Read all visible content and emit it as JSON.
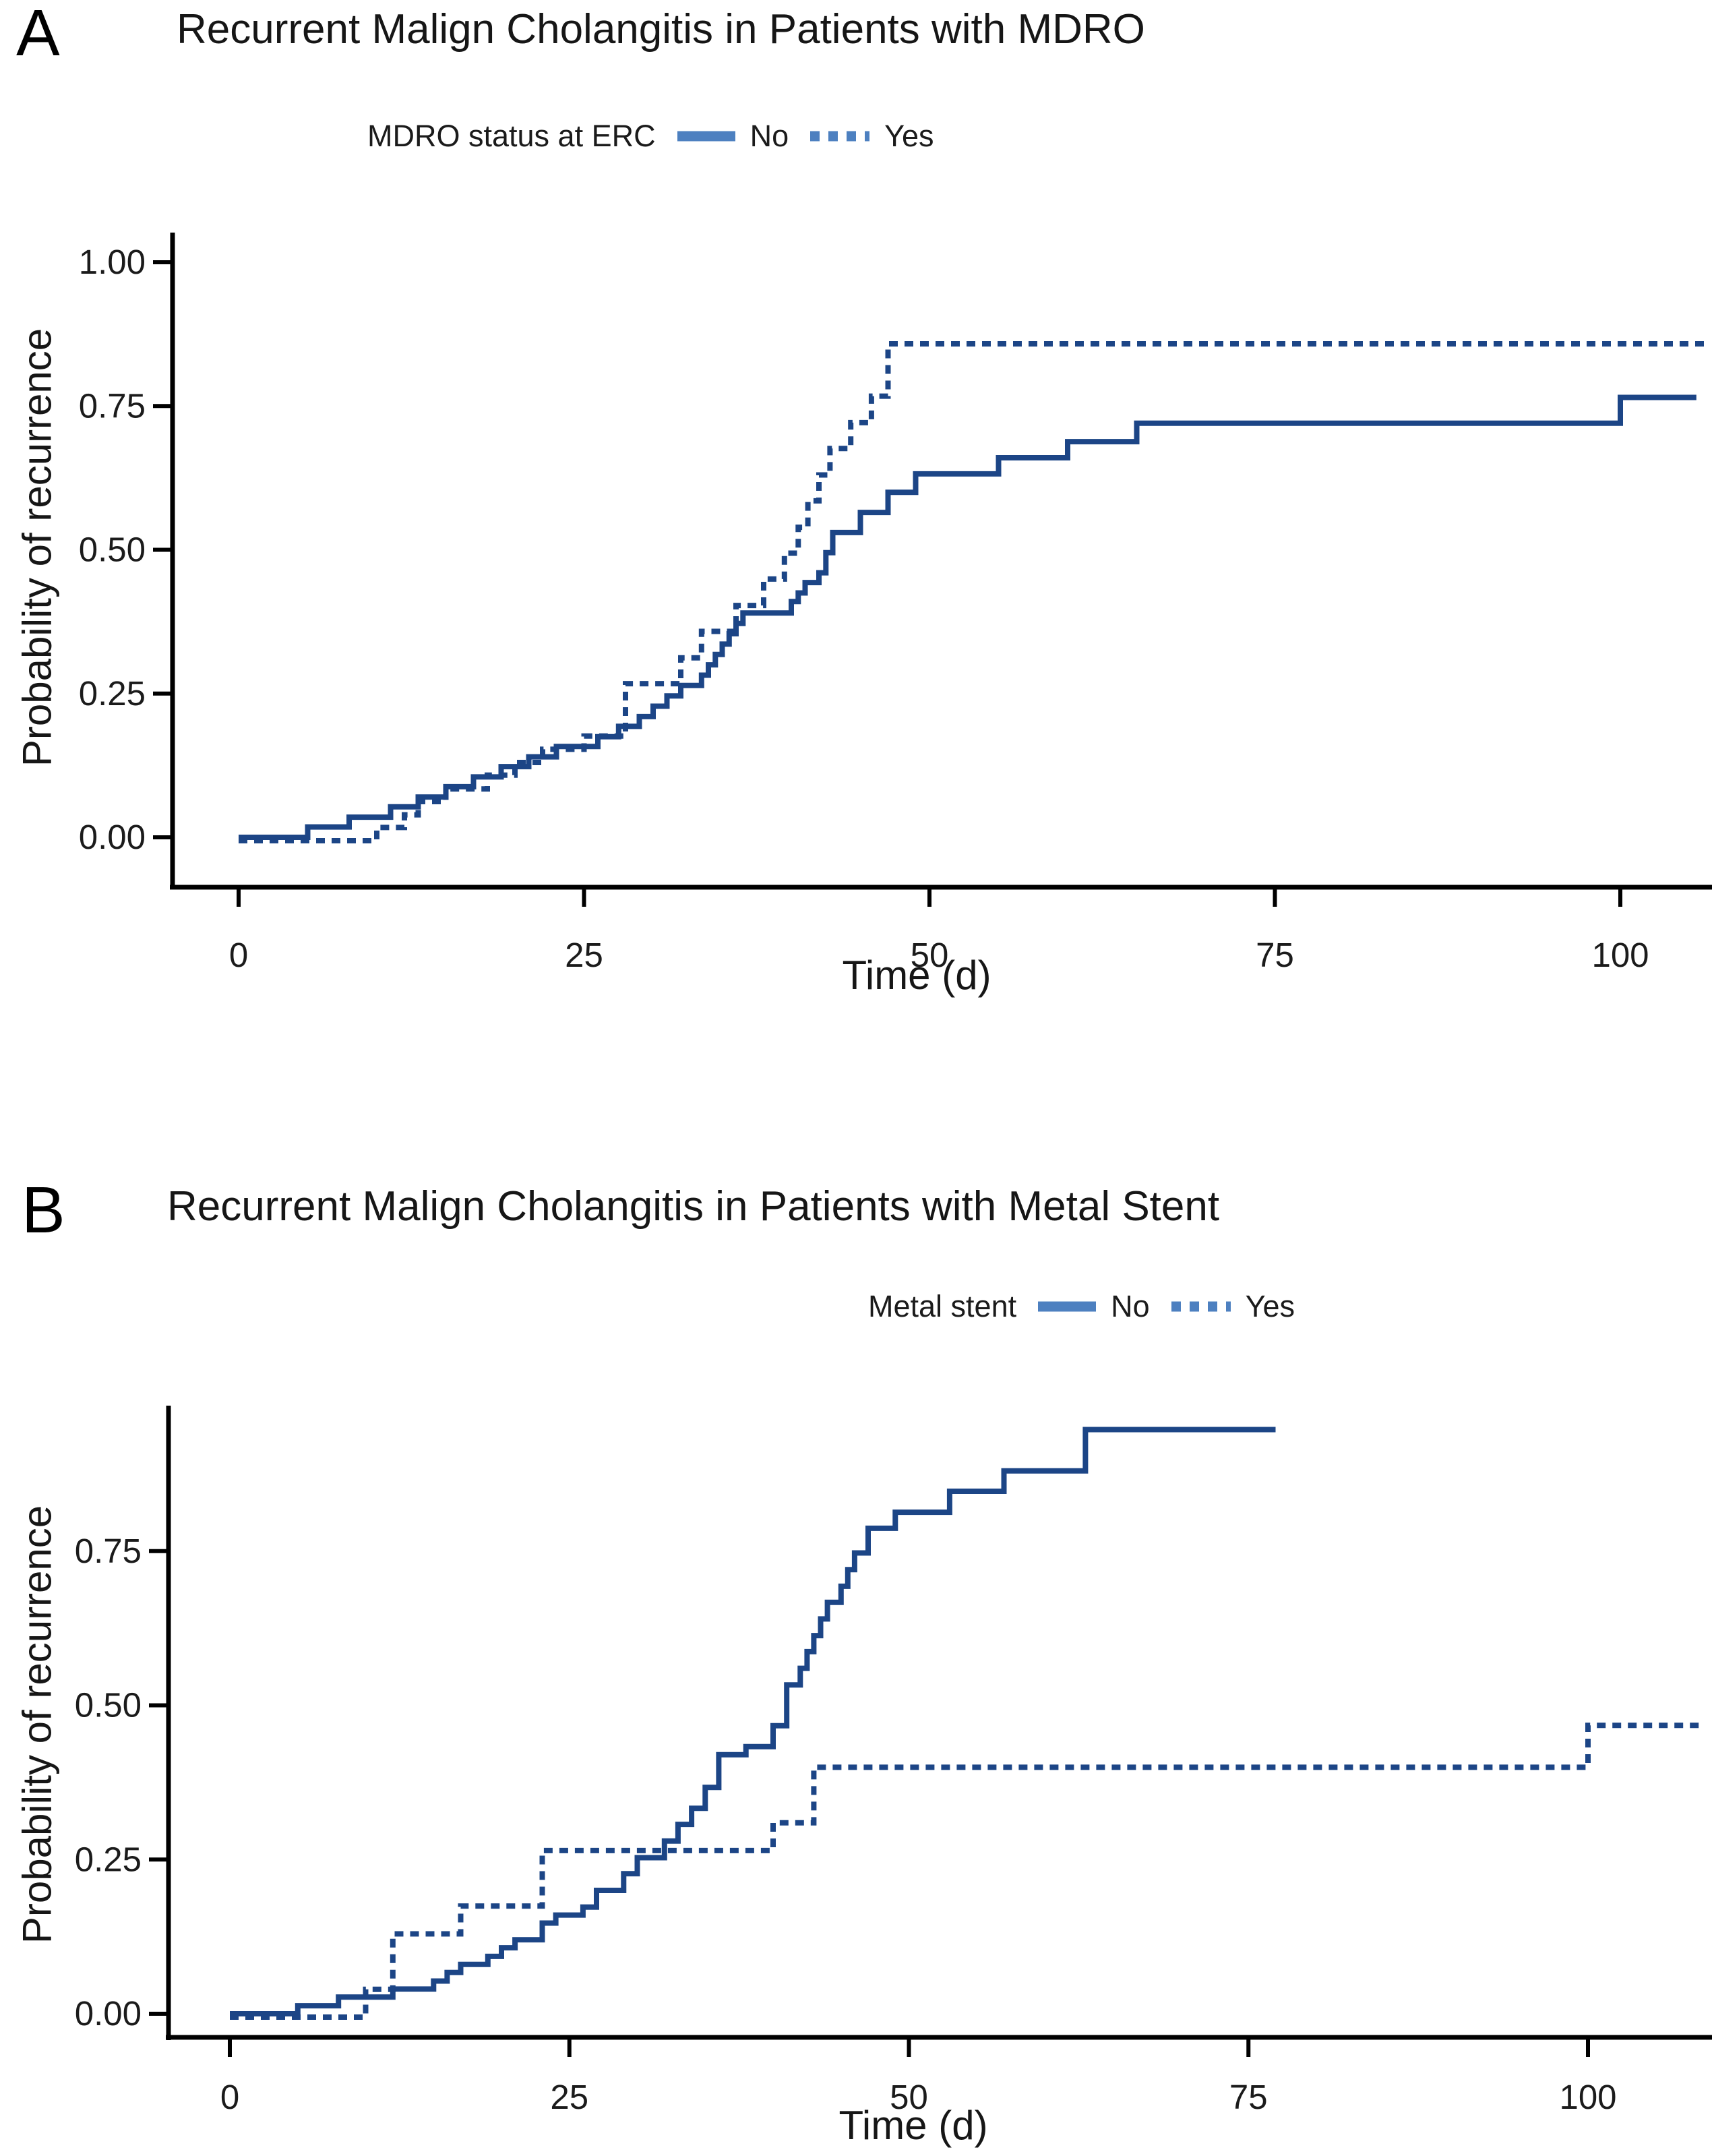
{
  "colors": {
    "curve": "#1c4586",
    "legend_key": "#4d80c0",
    "axis": "#000000",
    "text": "#1b1b1b"
  },
  "panels": [
    {
      "panel_label": "A",
      "title": "Recurrent Malign Cholangitis in Patients with MDRO",
      "legend": {
        "label": "MDRO status at ERC",
        "items": [
          {
            "label": "No",
            "style": "solid"
          },
          {
            "label": "Yes",
            "style": "dashed"
          }
        ]
      },
      "x_axis": {
        "label": "Time (d)",
        "ticks": [
          0,
          25,
          50,
          75,
          100
        ],
        "tick_labels": [
          "0",
          "25",
          "50",
          "75",
          "100"
        ]
      },
      "y_axis": {
        "label": "Probability of recurrence",
        "ticks": [
          0,
          0.25,
          0.5,
          0.75,
          1.0
        ],
        "tick_labels": [
          "0.00",
          "0.25",
          "0.50",
          "0.75",
          "1.00"
        ]
      }
    },
    {
      "panel_label": "B",
      "title": "Recurrent Malign Cholangitis in Patients with Metal Stent",
      "legend": {
        "label": "Metal stent",
        "items": [
          {
            "label": "No",
            "style": "solid"
          },
          {
            "label": "Yes",
            "style": "dashed"
          }
        ]
      },
      "x_axis": {
        "label": "Time (d)",
        "ticks": [
          0,
          25,
          50,
          75,
          100
        ],
        "tick_labels": [
          "0",
          "25",
          "50",
          "75",
          "100"
        ]
      },
      "y_axis": {
        "label": "Probability of recurrence",
        "ticks": [
          0,
          0.25,
          0.5,
          0.75
        ],
        "tick_labels": [
          "0.00",
          "0.25",
          "0.50",
          "0.75"
        ]
      }
    }
  ],
  "chart_data": [
    {
      "type": "line",
      "subtype": "step-cumulative-incidence",
      "title": "Recurrent Malign Cholangitis in Patients with MDRO",
      "xlabel": "Time (d)",
      "ylabel": "Probability of recurrence",
      "xlim": [
        -5,
        107
      ],
      "ylim": [
        0,
        1.0
      ],
      "legend_title": "MDRO status at ERC",
      "series": [
        {
          "name": "No",
          "style": "solid",
          "end_t": 105.5,
          "points": [
            [
              0,
              0
            ],
            [
              5,
              0.018
            ],
            [
              8,
              0.035
            ],
            [
              11,
              0.053
            ],
            [
              13,
              0.07
            ],
            [
              15,
              0.088
            ],
            [
              17,
              0.105
            ],
            [
              19,
              0.123
            ],
            [
              21,
              0.14
            ],
            [
              23,
              0.158
            ],
            [
              26,
              0.175
            ],
            [
              27.5,
              0.193
            ],
            [
              29,
              0.21
            ],
            [
              30,
              0.228
            ],
            [
              31,
              0.246
            ],
            [
              32,
              0.264
            ],
            [
              33.5,
              0.282
            ],
            [
              34,
              0.3
            ],
            [
              34.5,
              0.318
            ],
            [
              35,
              0.336
            ],
            [
              35.5,
              0.354
            ],
            [
              36,
              0.372
            ],
            [
              36.5,
              0.39
            ],
            [
              40,
              0.41
            ],
            [
              40.5,
              0.425
            ],
            [
              41,
              0.443
            ],
            [
              42,
              0.46
            ],
            [
              42.5,
              0.495
            ],
            [
              43,
              0.53
            ],
            [
              45,
              0.565
            ],
            [
              47,
              0.6
            ],
            [
              49,
              0.632
            ],
            [
              55,
              0.66
            ],
            [
              60,
              0.688
            ],
            [
              65,
              0.72
            ],
            [
              100,
              0.765
            ]
          ]
        },
        {
          "name": "Yes",
          "style": "dashed",
          "end_t": 106.5,
          "points": [
            [
              0,
              0
            ],
            [
              10,
              0.023
            ],
            [
              12,
              0.045
            ],
            [
              13,
              0.068
            ],
            [
              15,
              0.09
            ],
            [
              18,
              0.114
            ],
            [
              20,
              0.136
            ],
            [
              22,
              0.159
            ],
            [
              25,
              0.182
            ],
            [
              28,
              0.273
            ],
            [
              32,
              0.318
            ],
            [
              33.5,
              0.364
            ],
            [
              36,
              0.409
            ],
            [
              38,
              0.455
            ],
            [
              39.5,
              0.5
            ],
            [
              40.5,
              0.545
            ],
            [
              41.2,
              0.591
            ],
            [
              42,
              0.636
            ],
            [
              42.8,
              0.682
            ],
            [
              44.3,
              0.727
            ],
            [
              45.8,
              0.773
            ],
            [
              47,
              0.864
            ]
          ]
        }
      ]
    },
    {
      "type": "line",
      "subtype": "step-cumulative-incidence",
      "title": "Recurrent Malign Cholangitis in Patients with Metal Stent",
      "xlabel": "Time (d)",
      "ylabel": "Probability of recurrence",
      "xlim": [
        -5,
        109
      ],
      "ylim": [
        0,
        1.0
      ],
      "legend_title": "Metal stent",
      "series": [
        {
          "name": "No",
          "style": "solid",
          "end_t": 77,
          "points": [
            [
              0,
              0
            ],
            [
              5,
              0.013
            ],
            [
              8,
              0.027
            ],
            [
              12,
              0.04
            ],
            [
              15,
              0.053
            ],
            [
              16,
              0.067
            ],
            [
              17,
              0.08
            ],
            [
              19,
              0.093
            ],
            [
              20,
              0.107
            ],
            [
              21,
              0.12
            ],
            [
              23,
              0.147
            ],
            [
              24,
              0.16
            ],
            [
              26,
              0.173
            ],
            [
              27,
              0.2
            ],
            [
              29,
              0.227
            ],
            [
              30,
              0.253
            ],
            [
              32,
              0.28
            ],
            [
              33,
              0.307
            ],
            [
              34,
              0.333
            ],
            [
              35,
              0.367
            ],
            [
              36,
              0.42
            ],
            [
              38,
              0.433
            ],
            [
              40,
              0.467
            ],
            [
              41,
              0.533
            ],
            [
              42,
              0.56
            ],
            [
              42.5,
              0.587
            ],
            [
              43,
              0.613
            ],
            [
              43.5,
              0.64
            ],
            [
              44,
              0.667
            ],
            [
              45,
              0.693
            ],
            [
              45.5,
              0.72
            ],
            [
              46,
              0.747
            ],
            [
              47,
              0.787
            ],
            [
              49,
              0.813
            ],
            [
              53,
              0.847
            ],
            [
              57,
              0.88
            ],
            [
              63,
              0.947
            ]
          ]
        },
        {
          "name": "Yes",
          "style": "dashed",
          "end_t": 108.5,
          "points": [
            [
              0,
              0
            ],
            [
              10,
              0.045
            ],
            [
              12,
              0.135
            ],
            [
              17,
              0.18
            ],
            [
              23,
              0.27
            ],
            [
              40,
              0.315
            ],
            [
              43,
              0.405
            ],
            [
              100,
              0.473
            ]
          ]
        }
      ]
    }
  ]
}
